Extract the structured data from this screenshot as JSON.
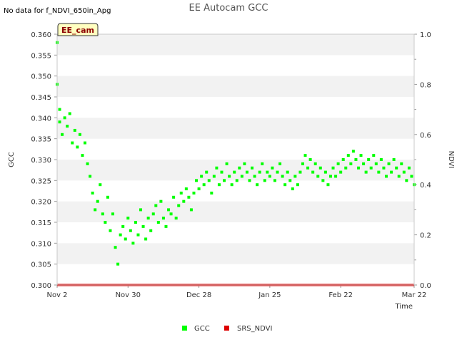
{
  "page": {
    "status_note": "No data for f_NDVI_650in_Apg",
    "site_tag": "EE_cam"
  },
  "chart_data": {
    "type": "scatter",
    "title": "EE Autocam GCC",
    "xlabel": "Time",
    "ylabel": "GCC",
    "y2label": "NDVI",
    "ylim": [
      0.3,
      0.36
    ],
    "y2lim": [
      0.0,
      1.0
    ],
    "xlim": [
      "2023-11-02",
      "2024-03-22"
    ],
    "yticks": [
      "0.300",
      "0.305",
      "0.310",
      "0.315",
      "0.320",
      "0.325",
      "0.330",
      "0.335",
      "0.340",
      "0.345",
      "0.350",
      "0.355",
      "0.360"
    ],
    "y2ticks": [
      "0.0",
      "0.2",
      "0.4",
      "0.6",
      "0.8",
      "1.0"
    ],
    "xticks": [
      {
        "label": "Nov 2",
        "date": "2023-11-02"
      },
      {
        "label": "Nov 30",
        "date": "2023-11-30"
      },
      {
        "label": "Dec 28",
        "date": "2023-12-28"
      },
      {
        "label": "Jan 25",
        "date": "2024-01-25"
      },
      {
        "label": "Feb 22",
        "date": "2024-02-22"
      },
      {
        "label": "Mar 22",
        "date": "2024-03-22"
      }
    ],
    "grid": "horizontal bands",
    "legend_position": "bottom-center",
    "series": [
      {
        "name": "GCC",
        "color": "#00ff00",
        "marker": "square",
        "axis": "left",
        "points": [
          [
            "2023-11-02",
            0.358
          ],
          [
            "2023-11-02",
            0.348
          ],
          [
            "2023-11-03",
            0.339
          ],
          [
            "2023-11-03",
            0.342
          ],
          [
            "2023-11-04",
            0.336
          ],
          [
            "2023-11-05",
            0.34
          ],
          [
            "2023-11-06",
            0.338
          ],
          [
            "2023-11-07",
            0.341
          ],
          [
            "2023-11-08",
            0.334
          ],
          [
            "2023-11-09",
            0.337
          ],
          [
            "2023-11-10",
            0.333
          ],
          [
            "2023-11-11",
            0.336
          ],
          [
            "2023-11-12",
            0.331
          ],
          [
            "2023-11-13",
            0.334
          ],
          [
            "2023-11-14",
            0.329
          ],
          [
            "2023-11-15",
            0.326
          ],
          [
            "2023-11-16",
            0.322
          ],
          [
            "2023-11-17",
            0.318
          ],
          [
            "2023-11-18",
            0.32
          ],
          [
            "2023-11-19",
            0.324
          ],
          [
            "2023-11-20",
            0.317
          ],
          [
            "2023-11-21",
            0.315
          ],
          [
            "2023-11-22",
            0.321
          ],
          [
            "2023-11-23",
            0.313
          ],
          [
            "2023-11-24",
            0.317
          ],
          [
            "2023-11-25",
            0.309
          ],
          [
            "2023-11-26",
            0.305
          ],
          [
            "2023-11-27",
            0.312
          ],
          [
            "2023-11-28",
            0.314
          ],
          [
            "2023-11-29",
            0.311
          ],
          [
            "2023-11-30",
            0.316
          ],
          [
            "2023-12-01",
            0.313
          ],
          [
            "2023-12-02",
            0.31
          ],
          [
            "2023-12-03",
            0.315
          ],
          [
            "2023-12-04",
            0.312
          ],
          [
            "2023-12-05",
            0.318
          ],
          [
            "2023-12-06",
            0.314
          ],
          [
            "2023-12-07",
            0.311
          ],
          [
            "2023-12-08",
            0.316
          ],
          [
            "2023-12-09",
            0.313
          ],
          [
            "2023-12-10",
            0.317
          ],
          [
            "2023-12-11",
            0.319
          ],
          [
            "2023-12-12",
            0.315
          ],
          [
            "2023-12-13",
            0.32
          ],
          [
            "2023-12-14",
            0.316
          ],
          [
            "2023-12-15",
            0.314
          ],
          [
            "2023-12-16",
            0.318
          ],
          [
            "2023-12-17",
            0.317
          ],
          [
            "2023-12-18",
            0.321
          ],
          [
            "2023-12-19",
            0.316
          ],
          [
            "2023-12-20",
            0.319
          ],
          [
            "2023-12-21",
            0.322
          ],
          [
            "2023-12-22",
            0.32
          ],
          [
            "2023-12-23",
            0.323
          ],
          [
            "2023-12-24",
            0.321
          ],
          [
            "2023-12-25",
            0.318
          ],
          [
            "2023-12-26",
            0.322
          ],
          [
            "2023-12-27",
            0.325
          ],
          [
            "2023-12-28",
            0.323
          ],
          [
            "2023-12-29",
            0.326
          ],
          [
            "2023-12-30",
            0.324
          ],
          [
            "2023-12-31",
            0.327
          ],
          [
            "2024-01-01",
            0.325
          ],
          [
            "2024-01-02",
            0.322
          ],
          [
            "2024-01-03",
            0.326
          ],
          [
            "2024-01-04",
            0.328
          ],
          [
            "2024-01-05",
            0.324
          ],
          [
            "2024-01-06",
            0.327
          ],
          [
            "2024-01-07",
            0.325
          ],
          [
            "2024-01-08",
            0.329
          ],
          [
            "2024-01-09",
            0.326
          ],
          [
            "2024-01-10",
            0.324
          ],
          [
            "2024-01-11",
            0.327
          ],
          [
            "2024-01-12",
            0.325
          ],
          [
            "2024-01-13",
            0.328
          ],
          [
            "2024-01-14",
            0.326
          ],
          [
            "2024-01-15",
            0.329
          ],
          [
            "2024-01-16",
            0.327
          ],
          [
            "2024-01-17",
            0.325
          ],
          [
            "2024-01-18",
            0.328
          ],
          [
            "2024-01-19",
            0.326
          ],
          [
            "2024-01-20",
            0.324
          ],
          [
            "2024-01-21",
            0.327
          ],
          [
            "2024-01-22",
            0.329
          ],
          [
            "2024-01-23",
            0.325
          ],
          [
            "2024-01-24",
            0.327
          ],
          [
            "2024-01-25",
            0.326
          ],
          [
            "2024-01-26",
            0.328
          ],
          [
            "2024-01-27",
            0.325
          ],
          [
            "2024-01-28",
            0.327
          ],
          [
            "2024-01-29",
            0.329
          ],
          [
            "2024-01-30",
            0.326
          ],
          [
            "2024-01-31",
            0.324
          ],
          [
            "2024-02-01",
            0.327
          ],
          [
            "2024-02-02",
            0.325
          ],
          [
            "2024-02-03",
            0.323
          ],
          [
            "2024-02-04",
            0.326
          ],
          [
            "2024-02-05",
            0.324
          ],
          [
            "2024-02-06",
            0.327
          ],
          [
            "2024-02-07",
            0.329
          ],
          [
            "2024-02-08",
            0.331
          ],
          [
            "2024-02-09",
            0.328
          ],
          [
            "2024-02-10",
            0.33
          ],
          [
            "2024-02-11",
            0.327
          ],
          [
            "2024-02-12",
            0.329
          ],
          [
            "2024-02-13",
            0.326
          ],
          [
            "2024-02-14",
            0.328
          ],
          [
            "2024-02-15",
            0.325
          ],
          [
            "2024-02-16",
            0.327
          ],
          [
            "2024-02-17",
            0.324
          ],
          [
            "2024-02-18",
            0.326
          ],
          [
            "2024-02-19",
            0.328
          ],
          [
            "2024-02-20",
            0.326
          ],
          [
            "2024-02-21",
            0.329
          ],
          [
            "2024-02-22",
            0.327
          ],
          [
            "2024-02-23",
            0.33
          ],
          [
            "2024-02-24",
            0.328
          ],
          [
            "2024-02-25",
            0.331
          ],
          [
            "2024-02-26",
            0.329
          ],
          [
            "2024-02-27",
            0.332
          ],
          [
            "2024-02-28",
            0.33
          ],
          [
            "2024-02-29",
            0.328
          ],
          [
            "2024-03-01",
            0.331
          ],
          [
            "2024-03-02",
            0.329
          ],
          [
            "2024-03-03",
            0.327
          ],
          [
            "2024-03-04",
            0.33
          ],
          [
            "2024-03-05",
            0.328
          ],
          [
            "2024-03-06",
            0.331
          ],
          [
            "2024-03-07",
            0.329
          ],
          [
            "2024-03-08",
            0.327
          ],
          [
            "2024-03-09",
            0.33
          ],
          [
            "2024-03-10",
            0.328
          ],
          [
            "2024-03-11",
            0.326
          ],
          [
            "2024-03-12",
            0.329
          ],
          [
            "2024-03-13",
            0.327
          ],
          [
            "2024-03-14",
            0.33
          ],
          [
            "2024-03-15",
            0.328
          ],
          [
            "2024-03-16",
            0.326
          ],
          [
            "2024-03-17",
            0.329
          ],
          [
            "2024-03-18",
            0.327
          ],
          [
            "2024-03-19",
            0.325
          ],
          [
            "2024-03-20",
            0.328
          ],
          [
            "2024-03-21",
            0.326
          ],
          [
            "2024-03-22",
            0.324
          ]
        ]
      },
      {
        "name": "SRS_NDVI",
        "color": "#dd0000",
        "marker": "square",
        "axis": "right",
        "points": [
          [
            "2023-11-02",
            0.0
          ],
          [
            "2024-03-22",
            0.0
          ]
        ]
      }
    ]
  }
}
